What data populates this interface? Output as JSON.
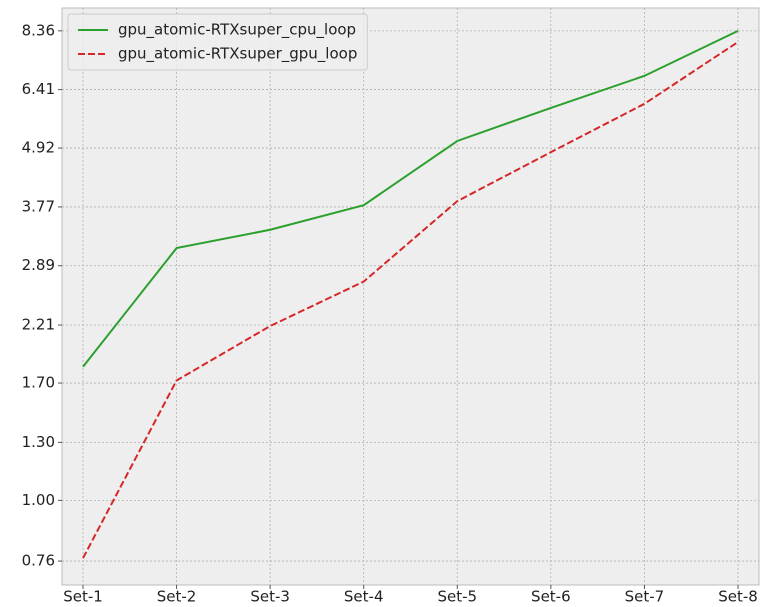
{
  "chart_data": {
    "type": "line",
    "categories": [
      "Set-1",
      "Set-2",
      "Set-3",
      "Set-4",
      "Set-5",
      "Set-6",
      "Set-7",
      "Set-8"
    ],
    "series": [
      {
        "name": "gpu_atomic-RTXsuper_cpu_loop",
        "color": "#2ca02c",
        "style": "solid",
        "values": [
          1.83,
          3.13,
          3.4,
          3.8,
          5.08,
          5.9,
          6.82,
          8.36
        ]
      },
      {
        "name": "gpu_atomic-RTXsuper_gpu_loop",
        "color": "#d62728",
        "style": "dashed",
        "values": [
          0.77,
          1.72,
          2.2,
          2.69,
          3.87,
          4.83,
          6.01,
          7.95
        ]
      }
    ],
    "yscale": "log",
    "ylim": [
      0.682,
      9.27
    ],
    "yticks": [
      0.76,
      {
        "value": 1,
        "label": "1.00"
      },
      {
        "value": 1.3,
        "label": "1.30"
      },
      {
        "value": 1.7,
        "label": "1.70"
      },
      2.21,
      2.89,
      3.77,
      4.92,
      6.41,
      8.36
    ],
    "grid": true,
    "legend": "upper left"
  }
}
